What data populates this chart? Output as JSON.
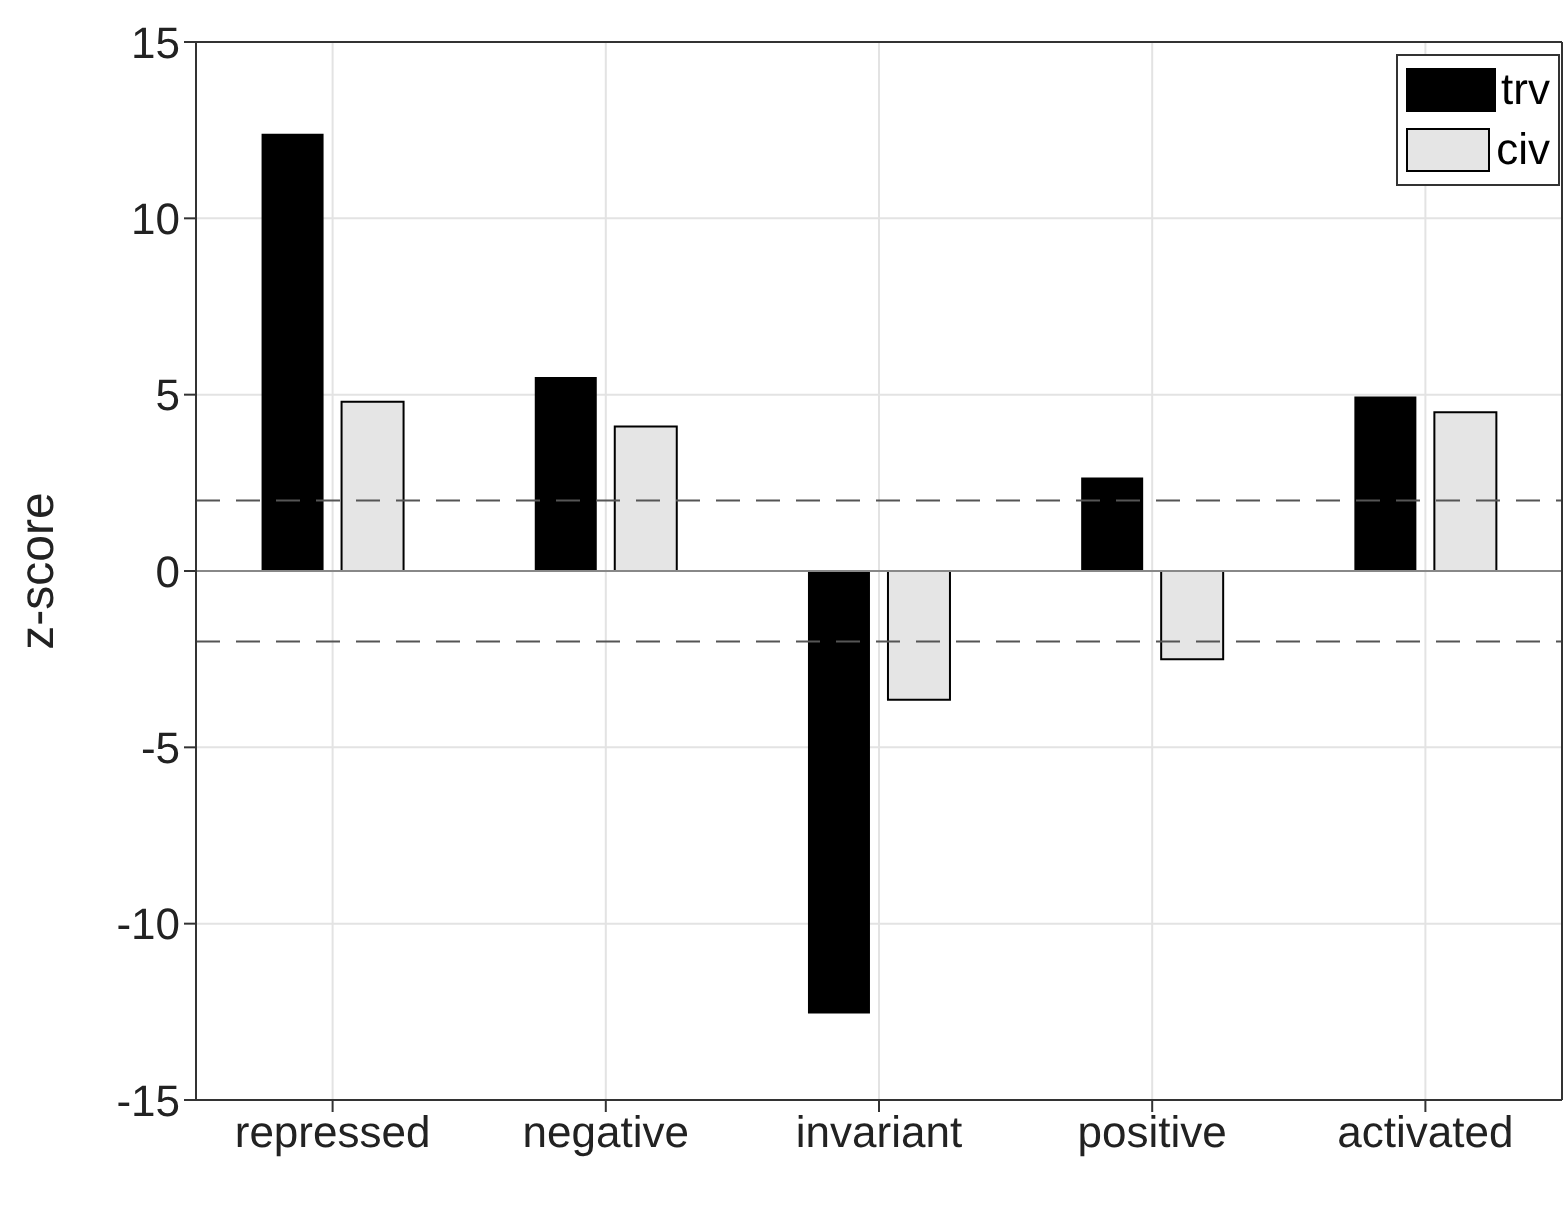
{
  "chart_data": {
    "type": "bar",
    "ylabel": "z-score",
    "categories": [
      "repressed",
      "negative",
      "invariant",
      "positive",
      "activated"
    ],
    "series": [
      {
        "name": "trv",
        "color": "#000000",
        "values": [
          12.4,
          5.5,
          -12.55,
          2.65,
          4.95
        ]
      },
      {
        "name": "civ",
        "color": "#e5e5e5",
        "values": [
          4.8,
          4.1,
          -3.65,
          -2.5,
          4.5
        ]
      }
    ],
    "ylim": [
      -15,
      15
    ],
    "yticks": [
      -15,
      -10,
      -5,
      0,
      5,
      10,
      15
    ],
    "grid": true,
    "legend": "top right",
    "ref_lines": [
      {
        "axis": "y",
        "value": 2,
        "line_style": "dashed"
      },
      {
        "axis": "y",
        "value": -2,
        "line_style": "dashed"
      }
    ]
  }
}
